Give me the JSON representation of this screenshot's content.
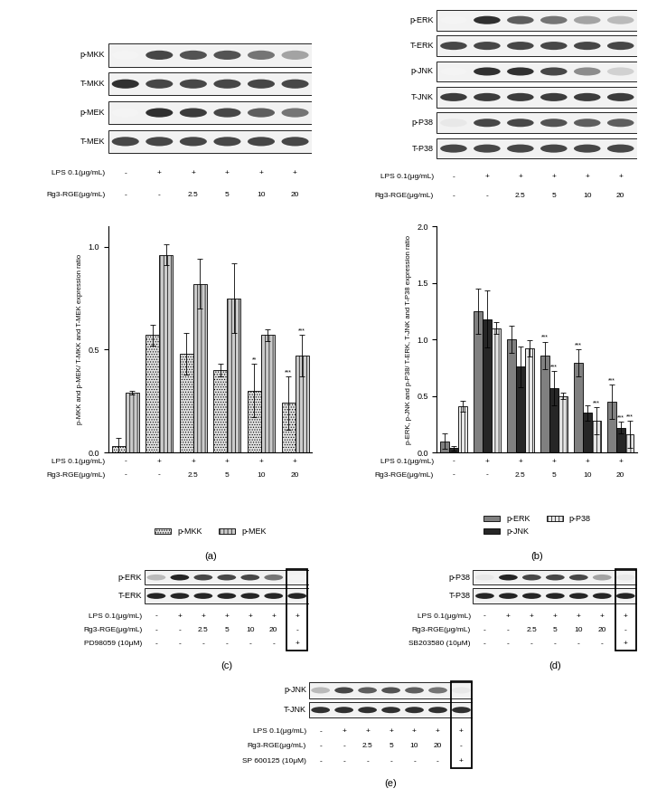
{
  "chart_data": [
    {
      "type": "blot",
      "rows": [
        {
          "name": "p-MKK",
          "bands": [
            0.05,
            0.8,
            0.75,
            0.75,
            0.6,
            0.4
          ]
        },
        {
          "name": "T-MKK",
          "bands": [
            0.9,
            0.8,
            0.8,
            0.8,
            0.8,
            0.8
          ]
        },
        {
          "name": "p-MEK",
          "bands": [
            0.05,
            0.9,
            0.85,
            0.8,
            0.7,
            0.6
          ]
        },
        {
          "name": "T-MEK",
          "bands": [
            0.8,
            0.8,
            0.8,
            0.8,
            0.8,
            0.8
          ]
        }
      ],
      "conditions": [
        {
          "label": "LPS 0.1(μg/mL)",
          "values": [
            "-",
            "+",
            "+",
            "+",
            "+",
            "+"
          ]
        },
        {
          "label": "Rg3-RGE(μg/mL)",
          "values": [
            "-",
            "-",
            "2.5",
            "5",
            "10",
            "20"
          ]
        }
      ]
    },
    {
      "type": "bar",
      "panel_label": "(a)",
      "y_label": "p-MKK and p-MEK/ T-MKK and T-MEK expression ratio",
      "conditions": [
        {
          "label": "LPS 0.1(μg/mL)",
          "values": [
            "-",
            "+",
            "+",
            "+",
            "+",
            "+"
          ]
        },
        {
          "label": "Rg3-RGE(μg/mL)",
          "values": [
            "-",
            "-",
            "2.5",
            "5",
            "10",
            "20"
          ]
        }
      ],
      "series": [
        {
          "name": "p-MKK",
          "color": "#e0e0e0",
          "values": [
            0.03,
            0.57,
            0.48,
            0.4,
            0.3,
            0.24
          ],
          "errors": [
            0.04,
            0.05,
            0.1,
            0.03,
            0.13,
            0.13
          ]
        },
        {
          "name": "p-MEK",
          "color": "#cccccc",
          "values": [
            0.29,
            0.96,
            0.82,
            0.75,
            0.57,
            0.47
          ],
          "errors": [
            0.01,
            0.05,
            0.12,
            0.17,
            0.03,
            0.1
          ]
        }
      ],
      "annotations": [
        {
          "series": "p-MKK",
          "index": 4,
          "text": "**"
        },
        {
          "series": "p-MKK",
          "index": 5,
          "text": "***"
        },
        {
          "series": "p-MEK",
          "index": 5,
          "text": "***"
        }
      ],
      "ylim": [
        0,
        1.1
      ],
      "yticks": [
        {
          "value": 0,
          "label": "0.0"
        },
        {
          "value": 0.5,
          "label": "0.5"
        },
        {
          "value": 1,
          "label": "1.0"
        }
      ],
      "legend": "lower center"
    },
    {
      "type": "blot",
      "rows": [
        {
          "name": "p-ERK",
          "bands": [
            0.05,
            0.9,
            0.7,
            0.6,
            0.4,
            0.3
          ]
        },
        {
          "name": "T-ERK",
          "bands": [
            0.8,
            0.8,
            0.8,
            0.8,
            0.8,
            0.8
          ]
        },
        {
          "name": "p-JNK",
          "bands": [
            0.05,
            0.9,
            0.9,
            0.8,
            0.5,
            0.2
          ]
        },
        {
          "name": "T-JNK",
          "bands": [
            0.85,
            0.85,
            0.85,
            0.85,
            0.85,
            0.85
          ]
        },
        {
          "name": "p-P38",
          "bands": [
            0.1,
            0.8,
            0.8,
            0.75,
            0.7,
            0.7
          ]
        },
        {
          "name": "T-P38",
          "bands": [
            0.8,
            0.8,
            0.8,
            0.8,
            0.8,
            0.8
          ]
        }
      ],
      "conditions": [
        {
          "label": "LPS 0.1(μg/mL)",
          "values": [
            "-",
            "+",
            "+",
            "+",
            "+",
            "+"
          ]
        },
        {
          "label": "Rg3-RGE(μg/mL)",
          "values": [
            "-",
            "-",
            "2.5",
            "5",
            "10",
            "20"
          ]
        }
      ]
    },
    {
      "type": "bar",
      "panel_label": "(b)",
      "y_label": "p-ERK, p-JNK and p-P38/ T-ERK, T-JNK and T-P38 expression ratio",
      "conditions": [
        {
          "label": "LPS 0.1(μg/mL)",
          "values": [
            "-",
            "+",
            "+",
            "+",
            "+",
            "+"
          ]
        },
        {
          "label": "Rg3-RGE(μg/mL)",
          "values": [
            "-",
            "-",
            "2.5",
            "5",
            "10",
            "20"
          ]
        }
      ],
      "series": [
        {
          "name": "p-ERK",
          "color": "#808080",
          "values": [
            0.1,
            1.25,
            1.0,
            0.86,
            0.79,
            0.45
          ],
          "errors": [
            0.07,
            0.2,
            0.12,
            0.12,
            0.12,
            0.15
          ]
        },
        {
          "name": "p-JNK",
          "color": "#262626",
          "values": [
            0.04,
            1.18,
            0.76,
            0.57,
            0.35,
            0.22
          ],
          "errors": [
            0.02,
            0.25,
            0.18,
            0.15,
            0.07,
            0.05
          ]
        },
        {
          "name": "p-P38",
          "color": "#e6e6e6",
          "values": [
            0.41,
            1.1,
            0.92,
            0.5,
            0.28,
            0.16
          ],
          "errors": [
            0.05,
            0.05,
            0.07,
            0.03,
            0.12,
            0.12
          ]
        }
      ],
      "annotations": [
        {
          "series": "p-ERK",
          "index": 3,
          "text": "***"
        },
        {
          "series": "p-JNK",
          "index": 3,
          "text": "***"
        },
        {
          "series": "p-ERK",
          "index": 4,
          "text": "***"
        },
        {
          "series": "p-P38",
          "index": 4,
          "text": "***"
        },
        {
          "series": "p-ERK",
          "index": 5,
          "text": "***"
        },
        {
          "series": "p-JNK",
          "index": 5,
          "text": "***"
        },
        {
          "series": "p-P38",
          "index": 5,
          "text": "***"
        }
      ],
      "ylim": [
        0,
        2.0
      ],
      "yticks": [
        {
          "value": 0,
          "label": "0.0"
        },
        {
          "value": 0.5,
          "label": "0.5"
        },
        {
          "value": 1,
          "label": "1.0"
        },
        {
          "value": 1.5,
          "label": "1.5"
        },
        {
          "value": 2,
          "label": "2.0"
        }
      ],
      "legend": "lower center"
    },
    {
      "type": "blot",
      "panel_label": "(c)",
      "rows": [
        {
          "name": "p-ERK",
          "bands": [
            0.3,
            0.95,
            0.8,
            0.8,
            0.8,
            0.6,
            0.05
          ]
        },
        {
          "name": "T-ERK",
          "bands": [
            0.95,
            0.95,
            0.95,
            0.95,
            0.95,
            0.95,
            0.95
          ]
        }
      ],
      "conditions": [
        {
          "label": "LPS 0.1(μg/mL)",
          "values": [
            "-",
            "+",
            "+",
            "+",
            "+",
            "+",
            "+"
          ]
        },
        {
          "label": "Rg3-RGE(μg/mL)",
          "values": [
            "-",
            "-",
            "2.5",
            "5",
            "10",
            "20",
            "-"
          ]
        },
        {
          "label": "PD98059 (10μM)",
          "values": [
            "-",
            "-",
            "-",
            "-",
            "-",
            "-",
            "+"
          ]
        }
      ]
    },
    {
      "type": "blot",
      "panel_label": "(d)",
      "rows": [
        {
          "name": "p-P38",
          "bands": [
            0.1,
            0.95,
            0.8,
            0.8,
            0.8,
            0.4,
            0.1
          ]
        },
        {
          "name": "T-P38",
          "bands": [
            0.95,
            0.95,
            0.95,
            0.95,
            0.95,
            0.95,
            0.95
          ]
        }
      ],
      "conditions": [
        {
          "label": "LPS 0.1(μg/mL)",
          "values": [
            "-",
            "+",
            "+",
            "+",
            "+",
            "+",
            "+"
          ]
        },
        {
          "label": "Rg3-RGE(μg/mL)",
          "values": [
            "-",
            "-",
            "2.5",
            "5",
            "10",
            "20",
            "-"
          ]
        },
        {
          "label": "SB203580 (10μM)",
          "values": [
            "-",
            "-",
            "-",
            "-",
            "-",
            "-",
            "+"
          ]
        }
      ]
    },
    {
      "type": "blot",
      "panel_label": "(e)",
      "rows": [
        {
          "name": "p-JNK",
          "bands": [
            0.3,
            0.8,
            0.7,
            0.75,
            0.7,
            0.6,
            0.1
          ]
        },
        {
          "name": "T-JNK",
          "bands": [
            0.9,
            0.9,
            0.9,
            0.9,
            0.9,
            0.9,
            0.9
          ]
        }
      ],
      "conditions": [
        {
          "label": "LPS 0.1(μg/mL)",
          "values": [
            "-",
            "+",
            "+",
            "+",
            "+",
            "+",
            "+"
          ]
        },
        {
          "label": "Rg3-RGE(μg/mL)",
          "values": [
            "-",
            "-",
            "2.5",
            "5",
            "10",
            "20",
            "-"
          ]
        },
        {
          "label": "SP 600125 (10μM)",
          "values": [
            "-",
            "-",
            "-",
            "-",
            "-",
            "-",
            "+"
          ]
        }
      ]
    }
  ]
}
